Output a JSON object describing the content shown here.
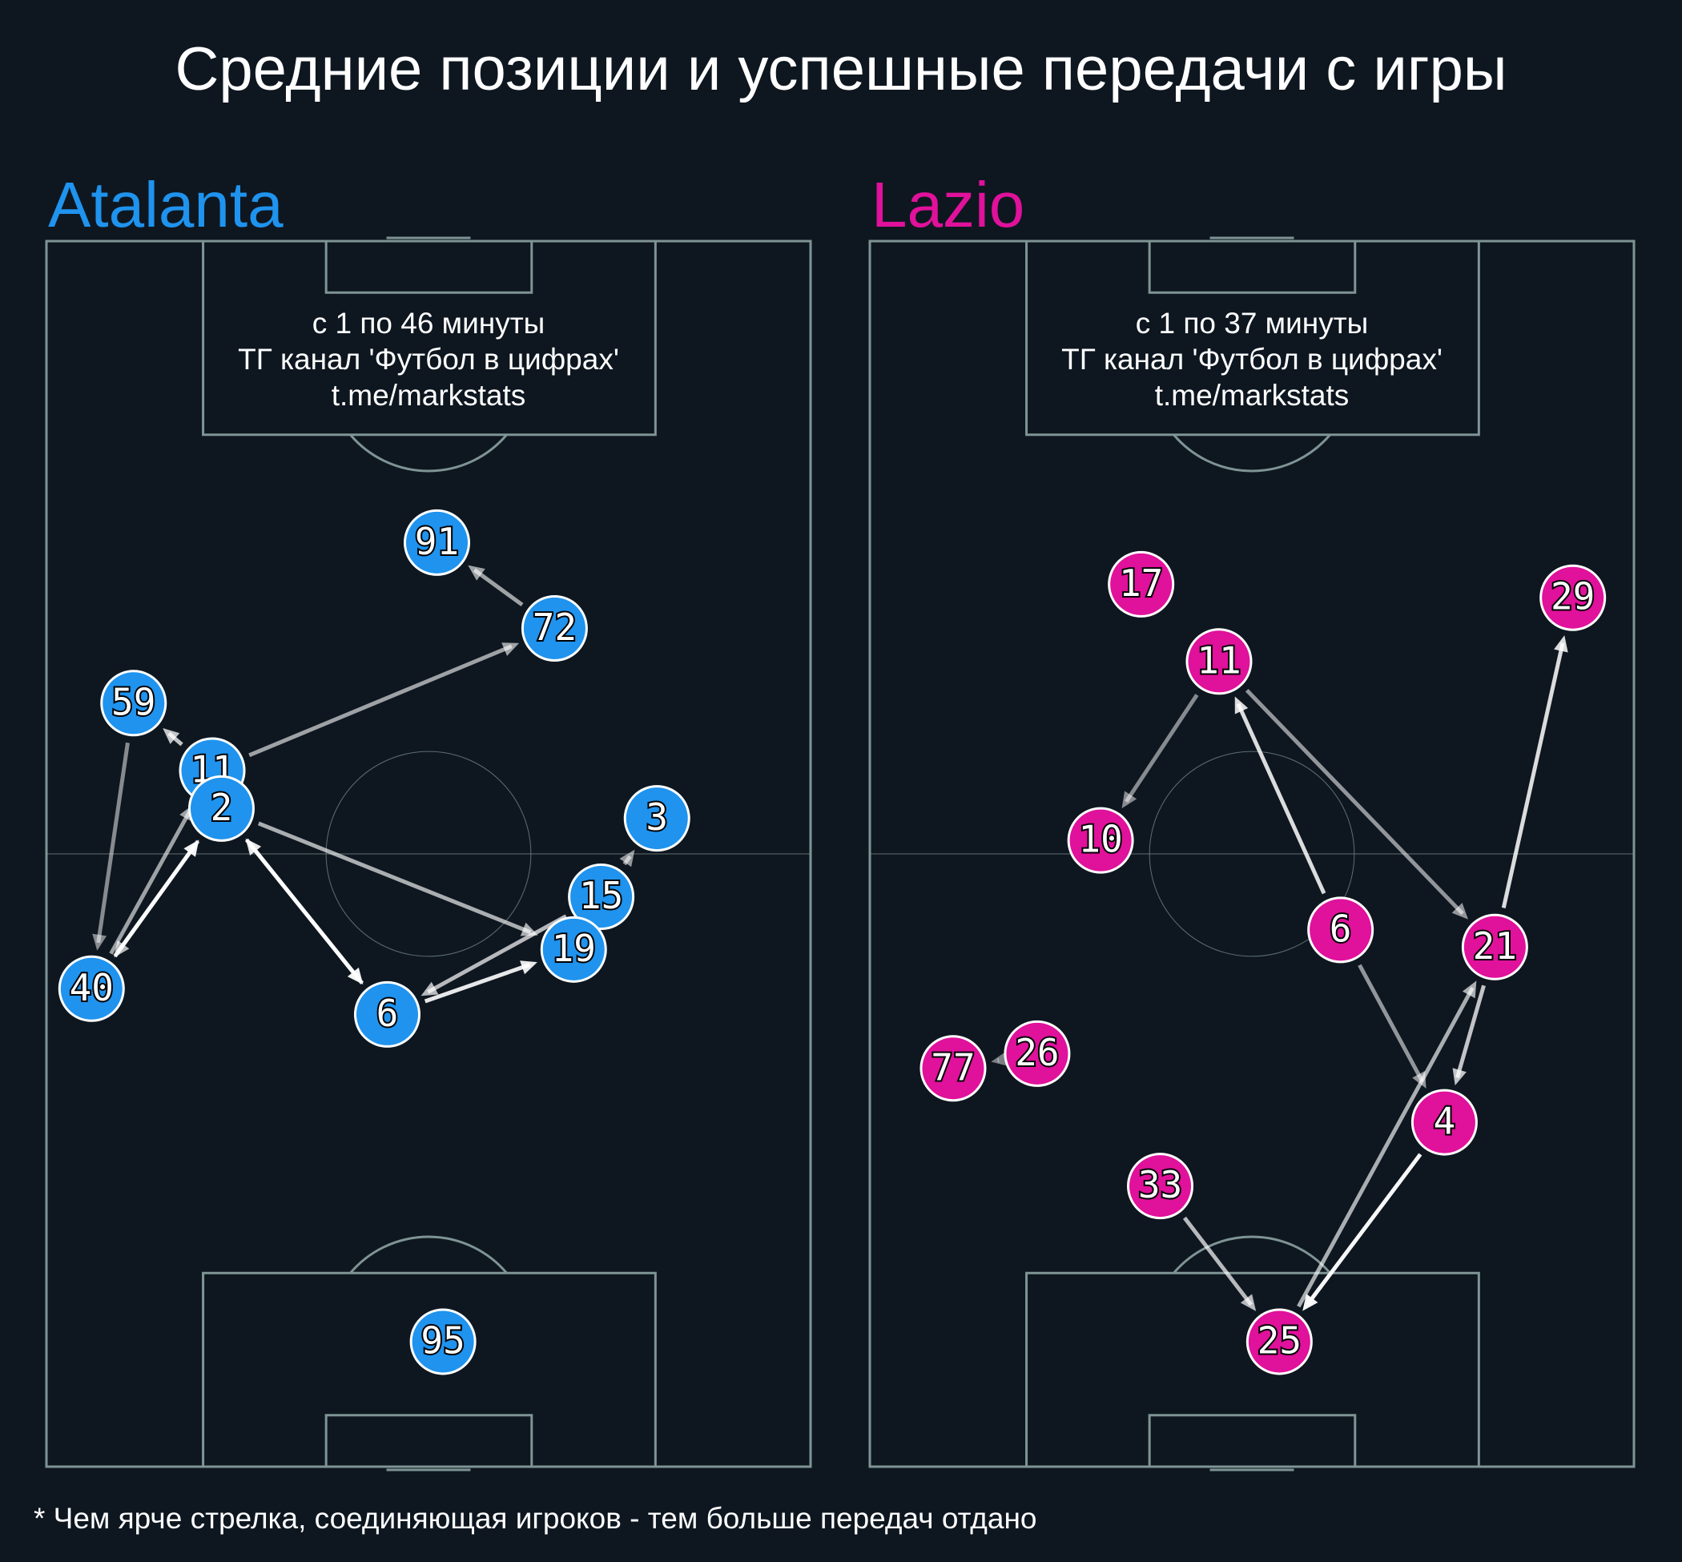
{
  "title": "Средние позиции и успешные передачи с игры",
  "footnote": "* Чем ярче стрелка, соединяющая игроков - тем больше передач отдано",
  "chart_data": [
    {
      "type": "scatter",
      "title": "Atalanta",
      "color": "#1f93ee",
      "annotation": [
        "с 1 по 46 минуты",
        "ТГ канал 'Футбол в цифрах'",
        "t.me/markstats"
      ],
      "xlim": [
        0,
        100
      ],
      "ylim": [
        0,
        100
      ],
      "labels": [
        "91",
        "72",
        "59",
        "11",
        "2",
        "3",
        "15",
        "19",
        "40",
        "6",
        "95"
      ],
      "x": [
        51.1,
        66.5,
        11.4,
        21.7,
        22.9,
        79.9,
        72.6,
        69.0,
        5.9,
        44.6,
        51.9
      ],
      "y": [
        75.4,
        68.4,
        62.3,
        56.8,
        53.7,
        52.9,
        46.5,
        42.2,
        39.0,
        36.9,
        10.2
      ],
      "passes": [
        {
          "from": "72",
          "to": "91",
          "color": "rgba(255,255,255,0.6)"
        },
        {
          "from": "11",
          "to": "72",
          "color": "rgba(255,255,255,0.6)"
        },
        {
          "from": "11",
          "to": "59",
          "color": "rgba(255,255,255,0.75)"
        },
        {
          "from": "59",
          "to": "40",
          "color": "rgba(255,255,255,0.5)"
        },
        {
          "from": "40",
          "to": "2",
          "color": "rgba(255,255,255,0.95)"
        },
        {
          "from": "2",
          "to": "40",
          "color": "rgba(255,255,255,0.7)"
        },
        {
          "from": "40",
          "to": "11",
          "color": "rgba(255,255,255,0.6)"
        },
        {
          "from": "2",
          "to": "6",
          "color": "rgba(255,255,255,0.95)"
        },
        {
          "from": "6",
          "to": "2",
          "color": "rgba(255,255,255,0.9)"
        },
        {
          "from": "2",
          "to": "19",
          "color": "rgba(255,255,255,0.65)"
        },
        {
          "from": "6",
          "to": "19",
          "color": "rgba(255,255,255,0.9)"
        },
        {
          "from": "15",
          "to": "6",
          "color": "rgba(255,255,255,0.7)"
        },
        {
          "from": "15",
          "to": "3",
          "color": "rgba(255,255,255,0.55)"
        }
      ]
    },
    {
      "type": "scatter",
      "title": "Lazio",
      "color": "#e0119b",
      "annotation": [
        "с 1 по 37 минуты",
        "ТГ канал 'Футбол в цифрах'",
        "t.me/markstats"
      ],
      "xlim": [
        0,
        100
      ],
      "ylim": [
        0,
        100
      ],
      "labels": [
        "17",
        "29",
        "11",
        "10",
        "6",
        "21",
        "26",
        "77",
        "4",
        "33",
        "25"
      ],
      "x": [
        35.5,
        92.0,
        45.7,
        30.2,
        61.6,
        81.8,
        21.9,
        10.9,
        75.2,
        38.0,
        53.6
      ],
      "y": [
        72.0,
        70.9,
        65.7,
        51.1,
        43.8,
        42.4,
        33.7,
        32.5,
        28.1,
        22.9,
        10.2
      ],
      "passes": [
        {
          "from": "11",
          "to": "10",
          "color": "rgba(255,255,255,0.5)"
        },
        {
          "from": "11",
          "to": "21",
          "color": "rgba(255,255,255,0.55)"
        },
        {
          "from": "6",
          "to": "11",
          "color": "rgba(255,255,255,0.85)"
        },
        {
          "from": "21",
          "to": "29",
          "color": "rgba(255,255,255,0.85)"
        },
        {
          "from": "6",
          "to": "4",
          "color": "rgba(255,255,255,0.55)"
        },
        {
          "from": "21",
          "to": "4",
          "color": "rgba(255,255,255,0.75)"
        },
        {
          "from": "4",
          "to": "25",
          "color": "rgba(255,255,255,0.97)"
        },
        {
          "from": "25",
          "to": "21",
          "color": "rgba(255,255,255,0.65)"
        },
        {
          "from": "33",
          "to": "25",
          "color": "rgba(255,255,255,0.7)"
        },
        {
          "from": "26",
          "to": "77",
          "color": "rgba(255,255,255,0.45)"
        }
      ]
    }
  ]
}
